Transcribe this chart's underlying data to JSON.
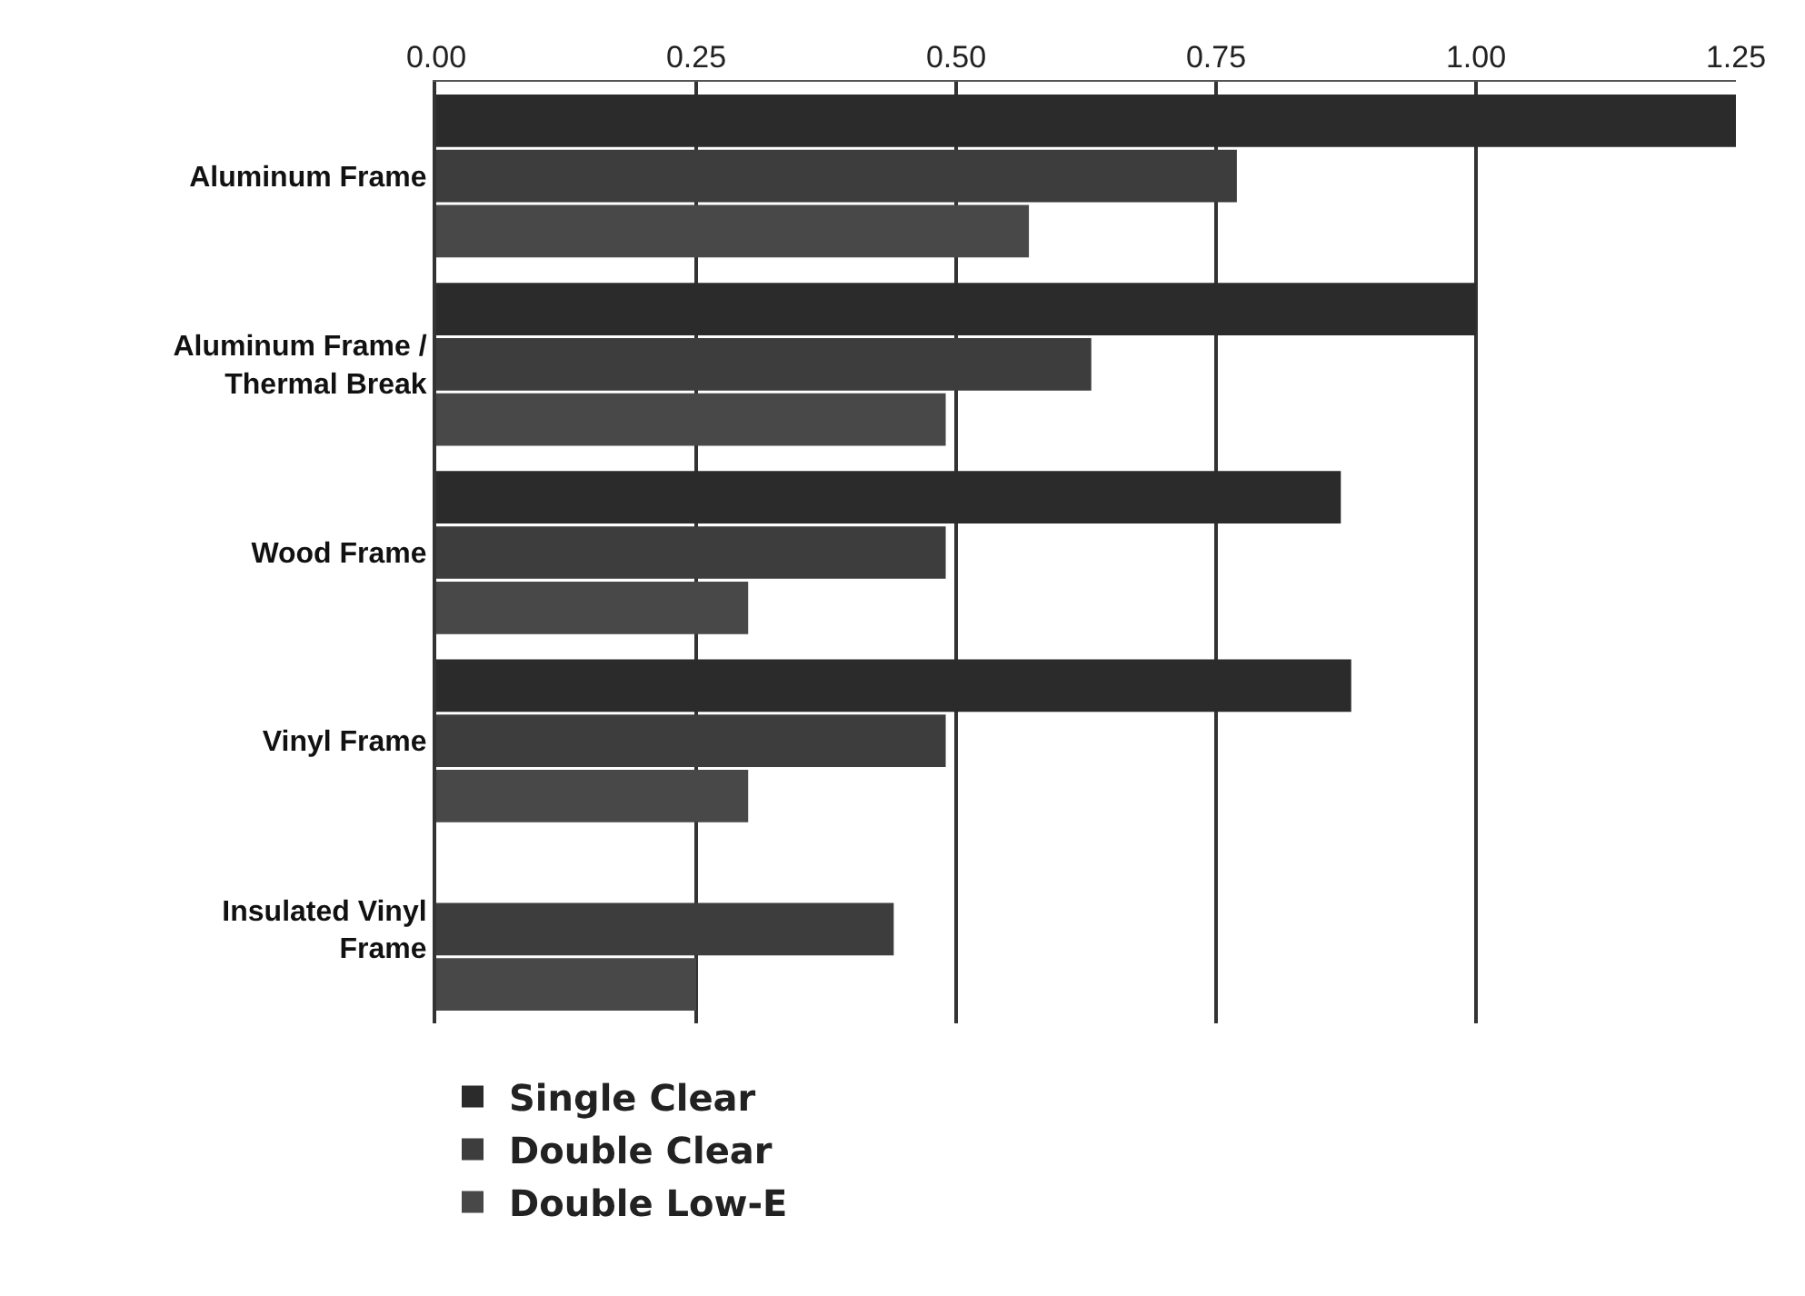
{
  "chart_data": {
    "type": "bar",
    "orientation": "horizontal",
    "categories": [
      "Aluminum Frame",
      "Aluminum Frame /\nThermal Break",
      "Wood Frame",
      "Vinyl Frame",
      "Insulated Vinyl\nFrame"
    ],
    "series": [
      {
        "name": "Single Clear",
        "color": "#2b2b2b",
        "values": [
          1.25,
          1.0,
          0.87,
          0.88,
          null
        ]
      },
      {
        "name": "Double Clear",
        "color": "#3d3d3d",
        "values": [
          0.77,
          0.63,
          0.49,
          0.49,
          0.44
        ]
      },
      {
        "name": "Double Low-E",
        "color": "#484848",
        "values": [
          0.57,
          0.49,
          0.3,
          0.3,
          0.25
        ]
      }
    ],
    "xlim": [
      0,
      1.25
    ],
    "xticks": [
      {
        "value": 0,
        "label": "0.00"
      },
      {
        "value": 0.25,
        "label": "0.25"
      },
      {
        "value": 0.5,
        "label": "0.50"
      },
      {
        "value": 0.75,
        "label": "0.75"
      },
      {
        "value": 1,
        "label": "1.00"
      },
      {
        "value": 1.25,
        "label": "1.25"
      }
    ],
    "grid": "x",
    "legend": "bottom left"
  }
}
